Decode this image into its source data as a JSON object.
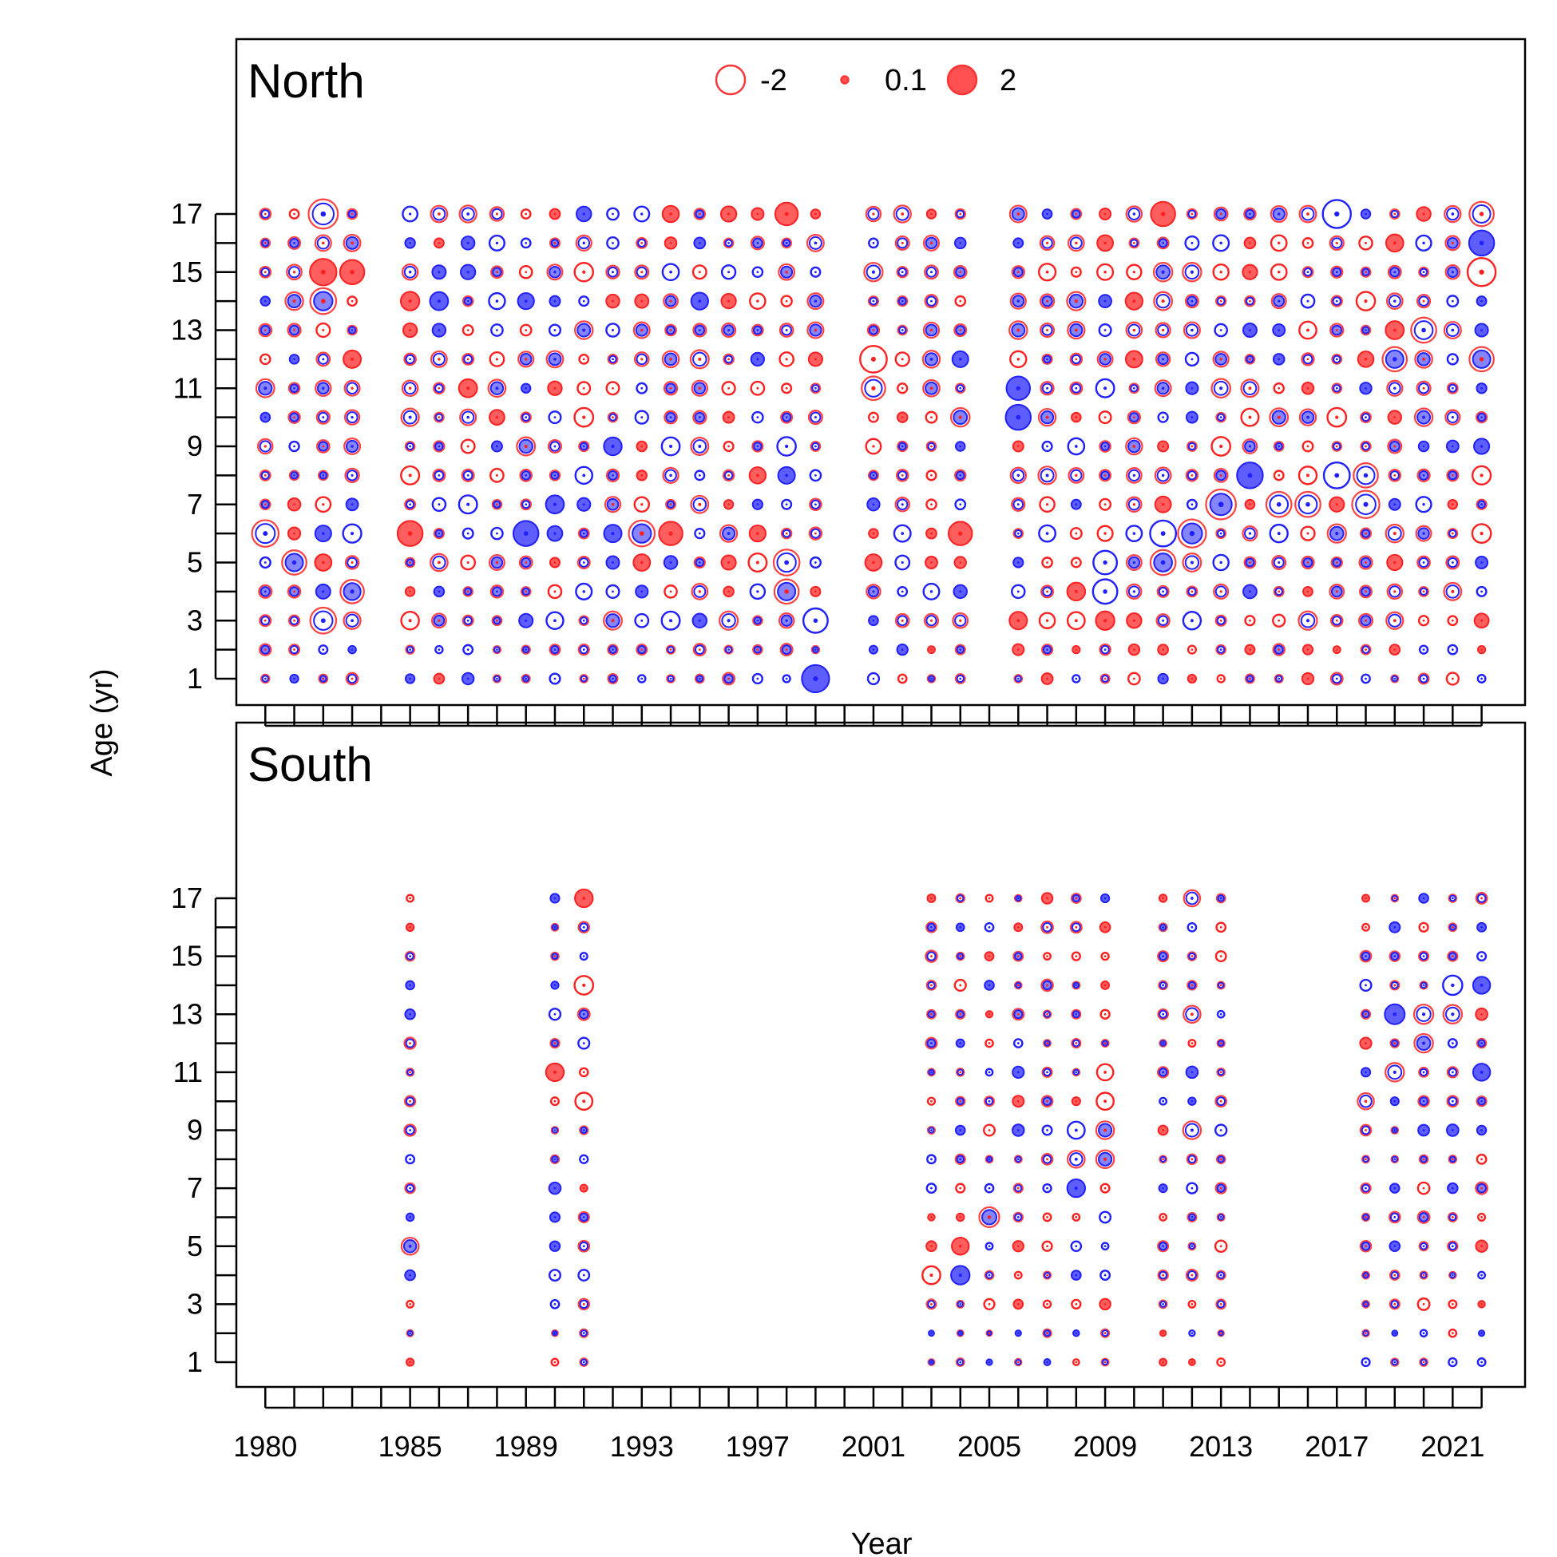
{
  "chart_data": {
    "type": "scatter",
    "subtype": "bubble",
    "xlabel": "Year",
    "ylabel": "Age (yr)",
    "x_ticks": [
      1980,
      1985,
      1989,
      1993,
      1997,
      2001,
      2005,
      2009,
      2013,
      2017,
      2021
    ],
    "y_ticks": [
      1,
      3,
      5,
      7,
      9,
      11,
      13,
      15,
      17
    ],
    "xlim": [
      1979,
      2023.5
    ],
    "ylim": [
      1,
      17
    ],
    "legend": {
      "placement": "top-center",
      "entries": [
        {
          "label": "-2",
          "value": -2,
          "fill": "#ffffff",
          "stroke": "#ff3333"
        },
        {
          "label": "0.1",
          "value": 0.1,
          "fill": "#ff3333",
          "stroke": "#ff3333"
        },
        {
          "label": "2",
          "value": 2,
          "fill": "#ff3333",
          "stroke": "#ff3333"
        }
      ]
    },
    "colors": {
      "observed": "#ff2020",
      "expected": "#2020ff",
      "overlap": "#6a2ccc",
      "frame": "#000000"
    },
    "panels": [
      {
        "title": "North",
        "years": [
          1980,
          1981,
          1982,
          1983,
          1985,
          1986,
          1987,
          1988,
          1989,
          1990,
          1991,
          1992,
          1993,
          1994,
          1995,
          1996,
          1997,
          1998,
          1999,
          2001,
          2002,
          2003,
          2004,
          2006,
          2007,
          2008,
          2009,
          2010,
          2011,
          2012,
          2013,
          2014,
          2015,
          2016,
          2017,
          2018,
          2019,
          2020,
          2021,
          2022
        ],
        "highlights": [
          {
            "year": 1982,
            "age": 17,
            "residual": -1.9
          },
          {
            "year": 1980,
            "age": 6,
            "residual": -1.5
          },
          {
            "year": 1982,
            "age": 3,
            "residual": -1.4
          },
          {
            "year": 1982,
            "age": 15,
            "residual": 1.5
          },
          {
            "year": 1982,
            "age": 14,
            "residual": 1.4
          },
          {
            "year": 1983,
            "age": 15,
            "residual": 1.2
          },
          {
            "year": 1983,
            "age": 4,
            "residual": -1.1
          },
          {
            "year": 1981,
            "age": 5,
            "residual": -1.2
          },
          {
            "year": 1985,
            "age": 6,
            "residual": 1.3
          },
          {
            "year": 1989,
            "age": 6,
            "residual": -1.3
          },
          {
            "year": 1993,
            "age": 6,
            "residual": 1.4
          },
          {
            "year": 1994,
            "age": 6,
            "residual": 1.1
          },
          {
            "year": 1998,
            "age": 5,
            "residual": -1.4
          },
          {
            "year": 1998,
            "age": 4,
            "residual": 1.2
          },
          {
            "year": 1999,
            "age": 1,
            "residual": -1.6
          },
          {
            "year": 1999,
            "age": 3,
            "residual": -1.2
          },
          {
            "year": 1998,
            "age": 17,
            "residual": 1.0
          },
          {
            "year": 2001,
            "age": 12,
            "residual": 1.5
          },
          {
            "year": 2001,
            "age": 11,
            "residual": 1.1
          },
          {
            "year": 2004,
            "age": 6,
            "residual": 1.1
          },
          {
            "year": 2006,
            "age": 10,
            "residual": -1.3
          },
          {
            "year": 2006,
            "age": 11,
            "residual": -1.1
          },
          {
            "year": 2009,
            "age": 4,
            "residual": -1.2
          },
          {
            "year": 2009,
            "age": 5,
            "residual": -1.1
          },
          {
            "year": 2011,
            "age": 6,
            "residual": -1.4
          },
          {
            "year": 2011,
            "age": 5,
            "residual": -1.3
          },
          {
            "year": 2011,
            "age": 17,
            "residual": 1.2
          },
          {
            "year": 2012,
            "age": 6,
            "residual": -1.7
          },
          {
            "year": 2013,
            "age": 7,
            "residual": -2.0
          },
          {
            "year": 2014,
            "age": 8,
            "residual": -1.4
          },
          {
            "year": 2015,
            "age": 7,
            "residual": -1.3
          },
          {
            "year": 2016,
            "age": 7,
            "residual": -1.3
          },
          {
            "year": 2017,
            "age": 17,
            "residual": -1.7
          },
          {
            "year": 2017,
            "age": 8,
            "residual": -1.4
          },
          {
            "year": 2018,
            "age": 7,
            "residual": -1.6
          },
          {
            "year": 2018,
            "age": 8,
            "residual": -1.2
          },
          {
            "year": 2019,
            "age": 12,
            "residual": -1.2
          },
          {
            "year": 2020,
            "age": 13,
            "residual": -1.3
          },
          {
            "year": 2022,
            "age": 15,
            "residual": 1.7
          },
          {
            "year": 2022,
            "age": 16,
            "residual": -1.3
          },
          {
            "year": 2022,
            "age": 17,
            "residual": 1.2
          },
          {
            "year": 2022,
            "age": 12,
            "residual": 1.2
          }
        ]
      },
      {
        "title": "South",
        "years": [
          1985,
          1990,
          1991,
          2003,
          2004,
          2005,
          2006,
          2007,
          2008,
          2009,
          2011,
          2012,
          2013,
          2018,
          2019,
          2020,
          2021,
          2022
        ],
        "highlights": [
          {
            "year": 1985,
            "age": 5,
            "residual": -0.8
          },
          {
            "year": 1991,
            "age": 17,
            "residual": 0.9
          },
          {
            "year": 1991,
            "age": 14,
            "residual": 1.0
          },
          {
            "year": 1990,
            "age": 11,
            "residual": 0.9
          },
          {
            "year": 1991,
            "age": 10,
            "residual": 0.8
          },
          {
            "year": 2003,
            "age": 4,
            "residual": 0.9
          },
          {
            "year": 2004,
            "age": 4,
            "residual": -1.0
          },
          {
            "year": 2004,
            "age": 5,
            "residual": 0.8
          },
          {
            "year": 2005,
            "age": 6,
            "residual": 1.2
          },
          {
            "year": 2008,
            "age": 7,
            "residual": -0.9
          },
          {
            "year": 2008,
            "age": 8,
            "residual": -0.8
          },
          {
            "year": 2008,
            "age": 9,
            "residual": -0.8
          },
          {
            "year": 2009,
            "age": 8,
            "residual": 0.9
          },
          {
            "year": 2009,
            "age": 9,
            "residual": 0.9
          },
          {
            "year": 2009,
            "age": 10,
            "residual": 0.8
          },
          {
            "year": 2009,
            "age": 11,
            "residual": 0.7
          },
          {
            "year": 2012,
            "age": 13,
            "residual": 0.8
          },
          {
            "year": 2012,
            "age": 9,
            "residual": -0.9
          },
          {
            "year": 2012,
            "age": 17,
            "residual": -0.7
          },
          {
            "year": 2019,
            "age": 13,
            "residual": -1.2
          },
          {
            "year": 2020,
            "age": 13,
            "residual": -1.1
          },
          {
            "year": 2020,
            "age": 12,
            "residual": -1.0
          },
          {
            "year": 2019,
            "age": 11,
            "residual": -1.0
          },
          {
            "year": 2021,
            "age": 14,
            "residual": -1.1
          },
          {
            "year": 2021,
            "age": 13,
            "residual": -1.0
          },
          {
            "year": 2022,
            "age": 14,
            "residual": -0.8
          },
          {
            "year": 2022,
            "age": 11,
            "residual": -0.8
          },
          {
            "year": 2018,
            "age": 10,
            "residual": 0.7
          }
        ]
      }
    ]
  }
}
